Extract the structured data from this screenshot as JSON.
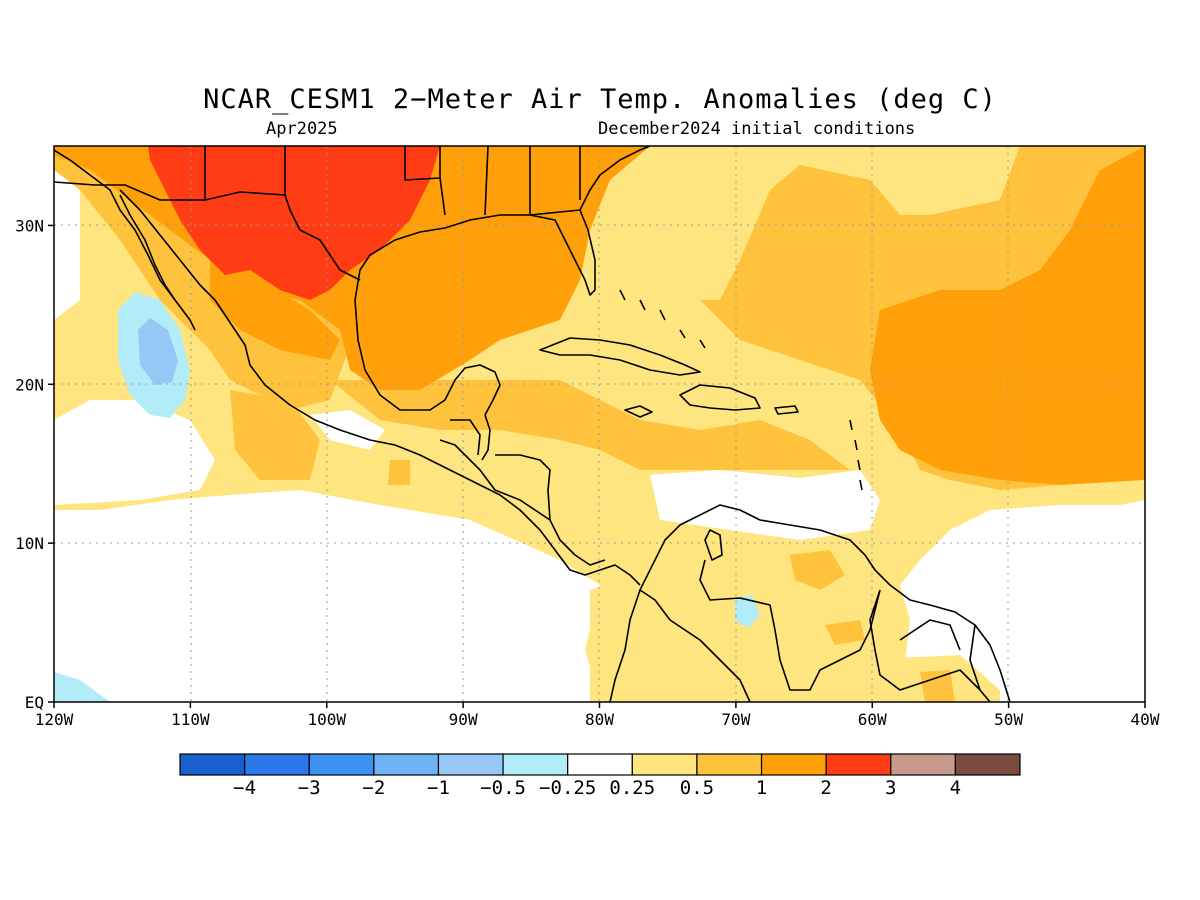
{
  "title": "NCAR_CESM1 2−Meter Air Temp. Anomalies (deg C)",
  "subtitle_left": "Apr2025",
  "subtitle_right": "December2024 initial conditions",
  "map_extent": {
    "lon_min": -120,
    "lon_max": -40,
    "lat_min": 0,
    "lat_max": 35
  },
  "lat_ticks": [
    {
      "value": 30,
      "label": "30N"
    },
    {
      "value": 20,
      "label": "20N"
    },
    {
      "value": 10,
      "label": "10N"
    },
    {
      "value": 0,
      "label": "EQ"
    }
  ],
  "lon_ticks": [
    {
      "value": -120,
      "label": "120W"
    },
    {
      "value": -110,
      "label": "110W"
    },
    {
      "value": -100,
      "label": "100W"
    },
    {
      "value": -90,
      "label": "90W"
    },
    {
      "value": -80,
      "label": "80W"
    },
    {
      "value": -70,
      "label": "70W"
    },
    {
      "value": -60,
      "label": "60W"
    },
    {
      "value": -50,
      "label": "50W"
    },
    {
      "value": -40,
      "label": "40W"
    }
  ],
  "colorbar": {
    "colors": [
      "#1a5fd0",
      "#2a78ea",
      "#3d91f2",
      "#6eb4f6",
      "#96c8f5",
      "#b3ecf9",
      "#ffffff",
      "#ffe580",
      "#ffc23c",
      "#ffa00a",
      "#ff3c14",
      "#c89a8c",
      "#7a4c40"
    ],
    "labels": [
      "−4",
      "−3",
      "−2",
      "−1",
      "−0.5",
      "−0.25",
      "0.25",
      "0.5",
      "1",
      "2",
      "3",
      "4"
    ]
  },
  "fill_colors": {
    "white": "#ffffff",
    "light_blue": "#b3ecf9",
    "mid_blue": "#96c8f5",
    "yellow": "#ffe580",
    "light_orange": "#ffc23c",
    "orange": "#ffa00a",
    "red": "#ff3c14"
  }
}
